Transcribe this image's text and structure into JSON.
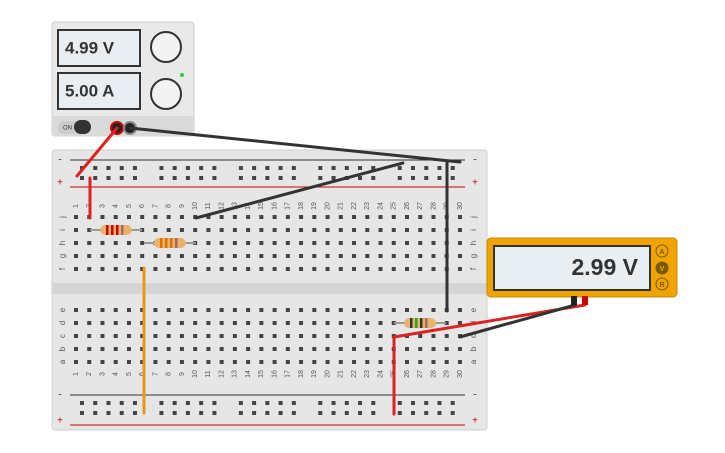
{
  "power_supply": {
    "voltage": "4.99 V",
    "current": "5.00 A",
    "switch": "ON"
  },
  "multimeter": {
    "reading": "2.99 V",
    "modes": [
      "A",
      "V",
      "R"
    ]
  },
  "breadboard": {
    "columns": [
      "1",
      "2",
      "3",
      "4",
      "5",
      "6",
      "7",
      "8",
      "9",
      "10",
      "11",
      "12",
      "13",
      "14",
      "15",
      "16",
      "17",
      "18",
      "19",
      "20",
      "21",
      "22",
      "23",
      "24",
      "25",
      "26",
      "27",
      "28",
      "29",
      "30"
    ],
    "rows_top": [
      "j",
      "i",
      "h",
      "g",
      "f"
    ],
    "rows_bottom": [
      "e",
      "d",
      "c",
      "b",
      "a"
    ],
    "rail_minus": "-",
    "rail_plus": "+"
  }
}
